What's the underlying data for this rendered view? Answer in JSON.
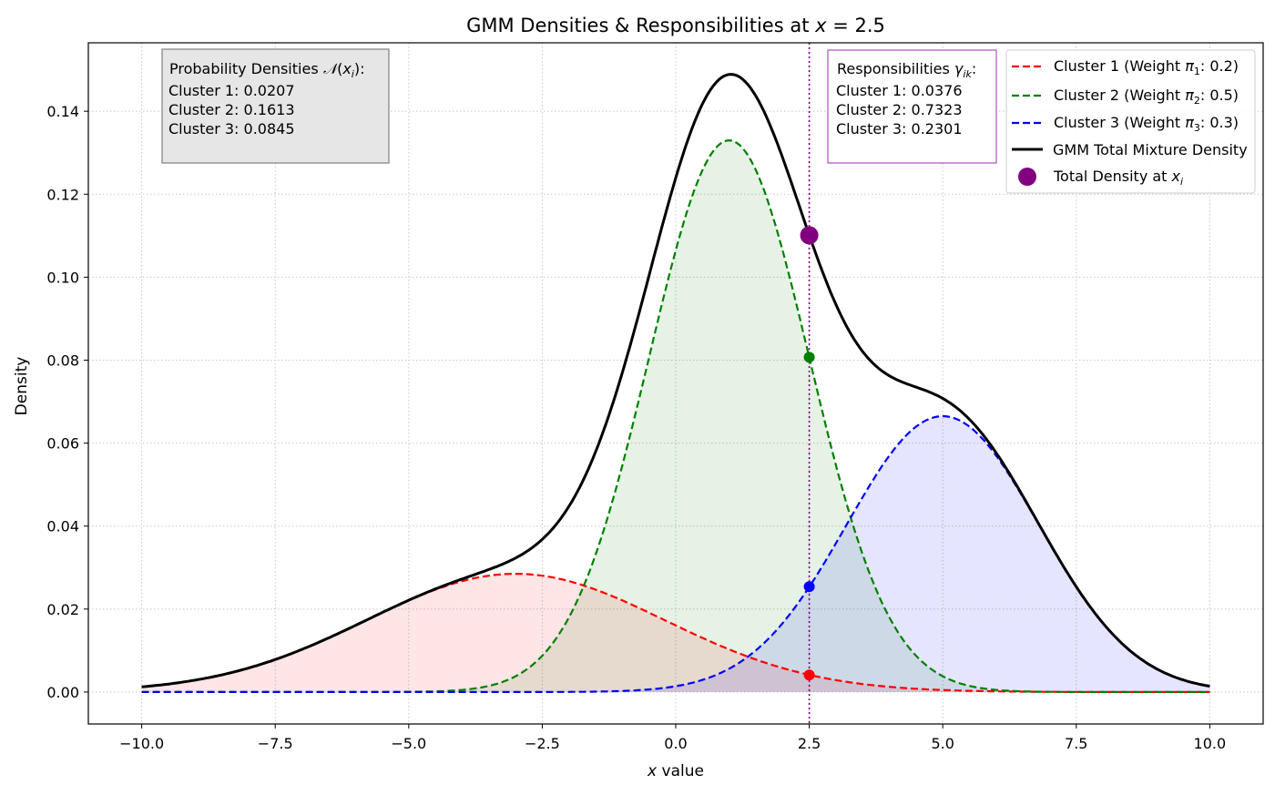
{
  "chart_data": {
    "type": "line",
    "title": {
      "prefix": "GMM Densities & Responsibilities at ",
      "var": "x",
      "suffix": " = 2.5"
    },
    "xlabel": {
      "var": "x",
      "text": " value"
    },
    "ylabel": "Density",
    "xlim": [
      -11,
      11
    ],
    "ylim": [
      -0.0077,
      0.1565
    ],
    "x_range": [
      -10,
      10
    ],
    "xticks": [
      -10,
      -7.5,
      -5,
      -2.5,
      0,
      2.5,
      5,
      7.5,
      10
    ],
    "xtick_labels": [
      "−10.0",
      "−7.5",
      "−5.0",
      "−2.5",
      "0.0",
      "2.5",
      "5.0",
      "7.5",
      "10.0"
    ],
    "yticks": [
      0,
      0.02,
      0.04,
      0.06,
      0.08,
      0.1,
      0.12,
      0.14
    ],
    "ytick_labels": [
      "0.00",
      "0.02",
      "0.04",
      "0.06",
      "0.08",
      "0.10",
      "0.12",
      "0.14"
    ],
    "grid": true,
    "legend_position": "top-right",
    "marker_x": 2.5,
    "series": [
      {
        "name": "Cluster 1 (Weight π1: 0.2)",
        "legend": {
          "a": "Cluster 1 (Weight ",
          "sym": "π",
          "sub": "1",
          "b": ": 0.2)"
        },
        "weight": 0.2,
        "mean": -3,
        "std": 2.8,
        "color": "#ff0000",
        "style": "dashed",
        "value_at_marker": 0.0041
      },
      {
        "name": "Cluster 2 (Weight π2: 0.5)",
        "legend": {
          "a": "Cluster 2 (Weight ",
          "sym": "π",
          "sub": "2",
          "b": ": 0.5)"
        },
        "weight": 0.5,
        "mean": 1,
        "std": 1.5,
        "color": "#008000",
        "style": "dashed",
        "value_at_marker": 0.0807
      },
      {
        "name": "Cluster 3 (Weight π3: 0.3)",
        "legend": {
          "a": "Cluster 3 (Weight ",
          "sym": "π",
          "sub": "3",
          "b": ": 0.3)"
        },
        "weight": 0.3,
        "mean": 5,
        "std": 1.8,
        "color": "#0000ff",
        "style": "dashed",
        "value_at_marker": 0.0254
      }
    ],
    "total": {
      "name": "GMM Total Mixture Density",
      "color": "#000000",
      "value_at_marker": 0.1101
    },
    "marker": {
      "name": "Total Density at x_i",
      "legend": {
        "a": "Total Density at ",
        "var": "x",
        "sub": "i"
      },
      "color": "#800080"
    },
    "annotations": {
      "densities_box": {
        "title": {
          "a": "Probability Densities ",
          "sym": "𝒩",
          "b": "(",
          "var": "x",
          "sub": "i",
          "c": "):"
        },
        "lines": [
          "Cluster 1: 0.0207",
          "Cluster 2: 0.1613",
          "Cluster 3: 0.0845"
        ]
      },
      "responsibilities_box": {
        "title": {
          "a": "Responsibilities ",
          "var": "γ",
          "sub": "ik",
          "c": ":"
        },
        "lines": [
          "Cluster 1: 0.0376",
          "Cluster 2: 0.7323",
          "Cluster 3: 0.2301"
        ]
      }
    }
  }
}
